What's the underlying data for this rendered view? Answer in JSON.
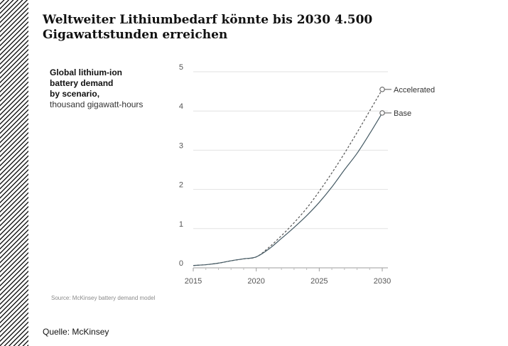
{
  "page": {
    "headline": "Weltweiter Lithiumbedarf könnte bis 2030 4.500 Gigawattstunden erreichen",
    "source": "Quelle: McKinsey"
  },
  "chart_data": {
    "type": "line",
    "title_lines": [
      "Global lithium-ion",
      "battery demand",
      "by scenario,"
    ],
    "subtitle": "thousand gigawatt-hours",
    "footnote": "Source: McKinsey battery demand model",
    "xlim": [
      2015,
      2030
    ],
    "ylim": [
      0,
      5
    ],
    "x_ticks": [
      2015,
      2020,
      2025,
      2030
    ],
    "y_ticks": [
      0,
      1,
      2,
      3,
      4,
      5
    ],
    "grid": true,
    "series": [
      {
        "name": "Accelerated",
        "style": "dashed",
        "color": "#555555",
        "points": [
          [
            2015,
            0.06
          ],
          [
            2016,
            0.08
          ],
          [
            2017,
            0.12
          ],
          [
            2018,
            0.18
          ],
          [
            2019,
            0.23
          ],
          [
            2020,
            0.28
          ],
          [
            2021,
            0.52
          ],
          [
            2022,
            0.82
          ],
          [
            2023,
            1.15
          ],
          [
            2024,
            1.52
          ],
          [
            2025,
            1.95
          ],
          [
            2026,
            2.42
          ],
          [
            2027,
            2.92
          ],
          [
            2028,
            3.45
          ],
          [
            2029,
            4.0
          ],
          [
            2030,
            4.55
          ]
        ],
        "end_marker": true
      },
      {
        "name": "Base",
        "style": "solid",
        "color": "#455a64",
        "points": [
          [
            2015,
            0.06
          ],
          [
            2016,
            0.08
          ],
          [
            2017,
            0.12
          ],
          [
            2018,
            0.18
          ],
          [
            2019,
            0.23
          ],
          [
            2020,
            0.28
          ],
          [
            2021,
            0.48
          ],
          [
            2022,
            0.75
          ],
          [
            2023,
            1.03
          ],
          [
            2024,
            1.33
          ],
          [
            2025,
            1.67
          ],
          [
            2026,
            2.06
          ],
          [
            2027,
            2.5
          ],
          [
            2028,
            2.92
          ],
          [
            2029,
            3.42
          ],
          [
            2030,
            3.95
          ]
        ],
        "end_marker": true
      }
    ]
  }
}
